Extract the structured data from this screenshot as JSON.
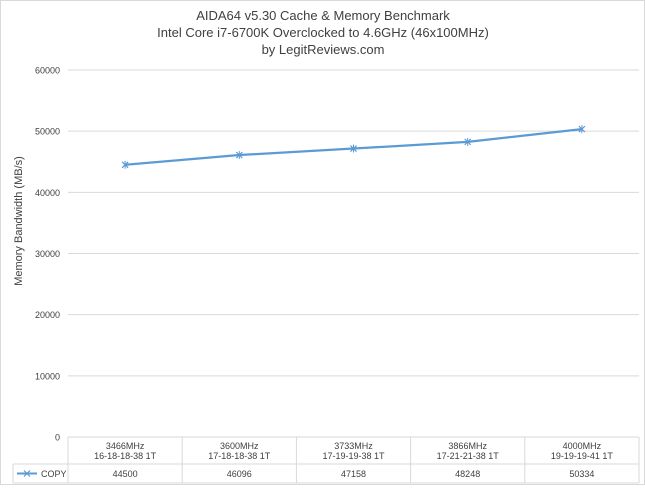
{
  "chart_data": {
    "type": "line",
    "title_lines": [
      "AIDA64 v5.30 Cache & Memory Benchmark",
      "Intel Core i7-6700K Overclocked to 4.6GHz (46x100MHz)",
      "by LegitReviews.com"
    ],
    "ylabel": "Memory Bandwidth (MB/s)",
    "ylim": [
      0,
      60000
    ],
    "yticks": [
      "0",
      "10000",
      "20000",
      "30000",
      "40000",
      "50000",
      "60000"
    ],
    "ytick_values": [
      0,
      10000,
      20000,
      30000,
      40000,
      50000,
      60000
    ],
    "grid": true,
    "categories": [
      [
        "3466MHz",
        "16-18-18-38 1T"
      ],
      [
        "3600MHz",
        "17-18-18-38 1T"
      ],
      [
        "3733MHz",
        "17-19-19-38 1T"
      ],
      [
        "3866MHz",
        "17-21-21-38 1T"
      ],
      [
        "4000MHz",
        "19-19-19-41 1T"
      ]
    ],
    "series": [
      {
        "name": "COPY",
        "values": [
          44500,
          46096,
          47158,
          48248,
          50334
        ]
      }
    ],
    "table_values": [
      "44500",
      "46096",
      "47158",
      "48248",
      "50334"
    ],
    "legend": "data-table",
    "colors": {
      "series": "#5b9bd5",
      "grid": "#d9d9d9",
      "text": "#404040"
    }
  }
}
